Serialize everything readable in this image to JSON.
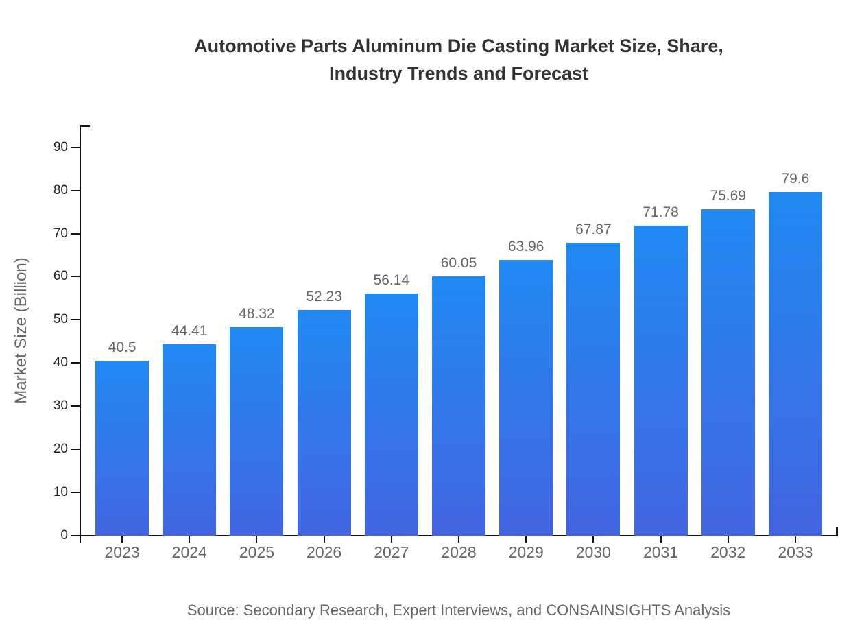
{
  "header": {
    "title_lines": [
      "Automotive Parts Aluminum Die Casting Market Size, Share,",
      "Industry Trends and Forecast"
    ]
  },
  "footer": {
    "source": "Source: Secondary Research, Expert Interviews, and CONSAINSIGHTS Analysis"
  },
  "chart_data": {
    "type": "bar",
    "title": "Automotive Parts Aluminum Die Casting Market Size, Share, Industry Trends and Forecast",
    "categories": [
      "2023",
      "2024",
      "2025",
      "2026",
      "2027",
      "2028",
      "2029",
      "2030",
      "2031",
      "2032",
      "2033"
    ],
    "values": [
      40.5,
      44.41,
      48.32,
      52.23,
      56.14,
      60.05,
      63.96,
      67.87,
      71.78,
      75.69,
      79.6
    ],
    "xlabel": "",
    "ylabel": "Market Size (Billion)",
    "ylim": [
      0,
      95.2
    ],
    "yticks": [
      0,
      10,
      20,
      30,
      40,
      50,
      60,
      70,
      80,
      90
    ],
    "grid": false,
    "legend": false,
    "value_labels_shown": true,
    "bar_color_top": "#2089f3",
    "bar_color_bottom": "#4365e2",
    "axis_color": "#111111",
    "label_color": "#666666",
    "tick_label_color": "#222222",
    "title_color": "#333333"
  }
}
